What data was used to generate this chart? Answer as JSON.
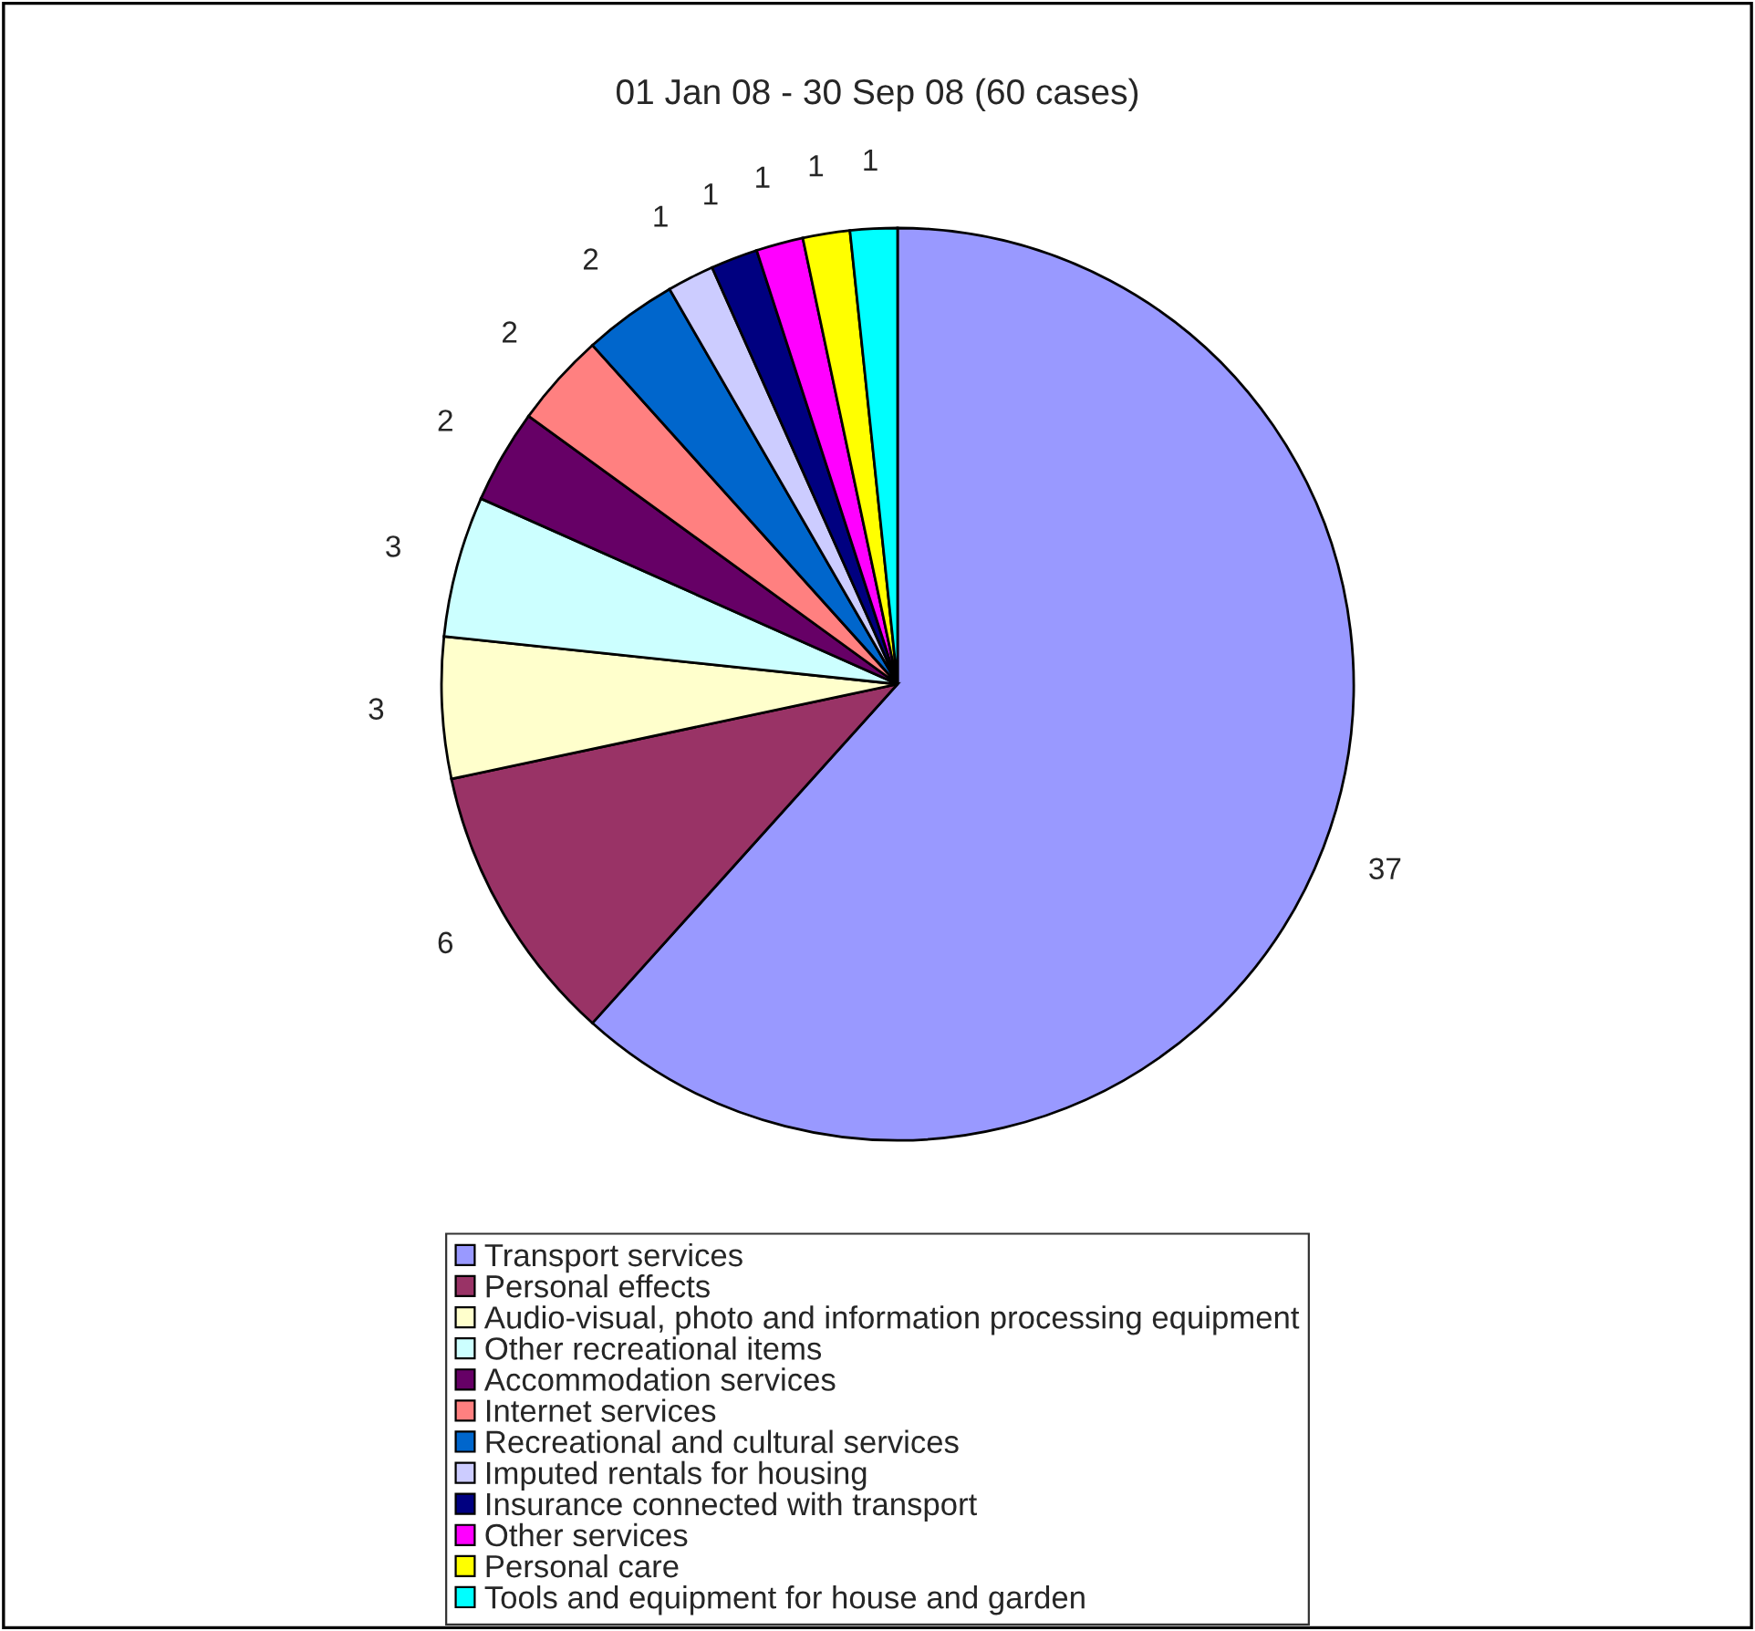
{
  "chart_data": {
    "type": "pie",
    "title": "01 Jan 08 - 30 Sep 08 (60 cases)",
    "categories": [
      "Transport services",
      "Personal effects",
      "Audio-visual, photo and information processing equipment",
      "Other recreational items",
      "Accommodation services",
      "Internet services",
      "Recreational and cultural services",
      "Imputed rentals for housing",
      "Insurance connected with transport",
      "Other services",
      "Personal care",
      "Tools and equipment for house and garden"
    ],
    "values": [
      37,
      6,
      3,
      3,
      2,
      2,
      2,
      1,
      1,
      1,
      1,
      1
    ],
    "colors": [
      "#9999ff",
      "#993366",
      "#ffffcc",
      "#ccffff",
      "#660066",
      "#ff8080",
      "#0066cc",
      "#ccccff",
      "#000080",
      "#ff00ff",
      "#ffff00",
      "#00ffff"
    ],
    "data_labels": true,
    "legend": "bottom"
  }
}
